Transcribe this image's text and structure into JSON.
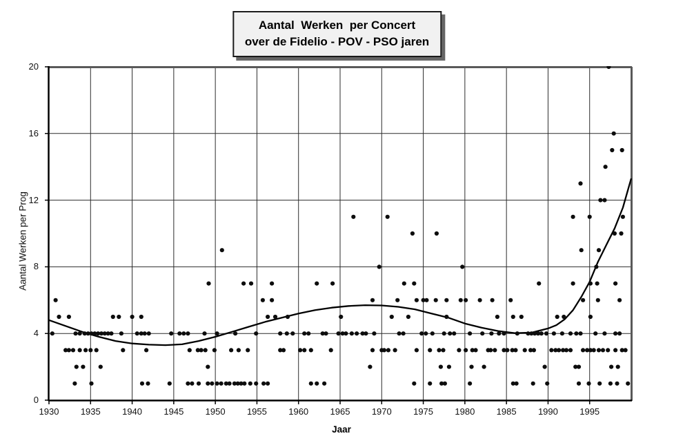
{
  "title": {
    "line1": "Aantal  Werken  per Concert",
    "line2": "over de Fidelio - POV - PSO jaren"
  },
  "chart_data": {
    "type": "scatter",
    "title": "Aantal Werken per Concert over de Fidelio - POV - PSO jaren",
    "xlabel": "Jaar",
    "ylabel": "Aantal Werken per Prog",
    "xlim": [
      1930,
      2000
    ],
    "ylim": [
      0,
      20
    ],
    "x_ticks": [
      1930,
      1935,
      1940,
      1945,
      1950,
      1955,
      1960,
      1965,
      1970,
      1975,
      1980,
      1985,
      1990,
      1995
    ],
    "y_ticks": [
      0,
      4,
      8,
      12,
      16,
      20
    ],
    "grid": true,
    "legend": "none",
    "marker_color": "#0d0d0d",
    "line_color": "#000000",
    "axis_color": "#000000",
    "frame_color": "#595959",
    "points": [
      [
        1930.4,
        4
      ],
      [
        1930.8,
        6
      ],
      [
        1931.2,
        5
      ],
      [
        1932.0,
        3
      ],
      [
        1932.4,
        3
      ],
      [
        1932.4,
        5
      ],
      [
        1932.9,
        3
      ],
      [
        1933.1,
        1
      ],
      [
        1933.2,
        4
      ],
      [
        1933.3,
        2
      ],
      [
        1933.7,
        3
      ],
      [
        1933.7,
        4
      ],
      [
        1934.1,
        2
      ],
      [
        1934.3,
        4
      ],
      [
        1934.4,
        3
      ],
      [
        1934.7,
        4
      ],
      [
        1935.0,
        3
      ],
      [
        1935.1,
        1
      ],
      [
        1935.1,
        4
      ],
      [
        1935.5,
        4
      ],
      [
        1935.7,
        3
      ],
      [
        1935.9,
        4
      ],
      [
        1936.2,
        2
      ],
      [
        1936.3,
        4
      ],
      [
        1936.7,
        4
      ],
      [
        1937.1,
        4
      ],
      [
        1937.5,
        4
      ],
      [
        1937.7,
        5
      ],
      [
        1938.4,
        5
      ],
      [
        1938.7,
        4
      ],
      [
        1938.9,
        3
      ],
      [
        1940.0,
        5
      ],
      [
        1940.6,
        4
      ],
      [
        1941.1,
        5
      ],
      [
        1941.1,
        4
      ],
      [
        1941.2,
        1
      ],
      [
        1941.5,
        4
      ],
      [
        1941.7,
        3
      ],
      [
        1941.9,
        1
      ],
      [
        1942.0,
        4
      ],
      [
        1944.5,
        1
      ],
      [
        1944.7,
        4
      ],
      [
        1945.7,
        4
      ],
      [
        1946.2,
        4
      ],
      [
        1946.7,
        4
      ],
      [
        1946.7,
        1
      ],
      [
        1946.9,
        3
      ],
      [
        1947.2,
        1
      ],
      [
        1947.9,
        3
      ],
      [
        1948.0,
        1
      ],
      [
        1948.3,
        3
      ],
      [
        1948.7,
        4
      ],
      [
        1948.8,
        3
      ],
      [
        1949.1,
        1
      ],
      [
        1949.1,
        2
      ],
      [
        1949.2,
        7
      ],
      [
        1949.6,
        1
      ],
      [
        1949.9,
        3
      ],
      [
        1950.2,
        1
      ],
      [
        1950.2,
        4
      ],
      [
        1950.7,
        1
      ],
      [
        1950.8,
        9
      ],
      [
        1951.3,
        1
      ],
      [
        1951.7,
        1
      ],
      [
        1951.9,
        3
      ],
      [
        1952.3,
        1
      ],
      [
        1952.4,
        4
      ],
      [
        1952.7,
        1
      ],
      [
        1952.8,
        3
      ],
      [
        1953.1,
        1
      ],
      [
        1953.4,
        7
      ],
      [
        1953.5,
        1
      ],
      [
        1953.9,
        3
      ],
      [
        1954.2,
        1
      ],
      [
        1954.3,
        7
      ],
      [
        1954.9,
        1
      ],
      [
        1954.9,
        4
      ],
      [
        1955.7,
        6
      ],
      [
        1955.8,
        1
      ],
      [
        1956.3,
        1
      ],
      [
        1956.3,
        5
      ],
      [
        1956.8,
        6
      ],
      [
        1956.8,
        7
      ],
      [
        1957.2,
        5
      ],
      [
        1957.8,
        4
      ],
      [
        1957.8,
        3
      ],
      [
        1958.2,
        3
      ],
      [
        1958.6,
        4
      ],
      [
        1958.7,
        5
      ],
      [
        1959.3,
        4
      ],
      [
        1960.2,
        3
      ],
      [
        1960.7,
        3
      ],
      [
        1960.7,
        4
      ],
      [
        1961.2,
        4
      ],
      [
        1961.5,
        3
      ],
      [
        1961.5,
        1
      ],
      [
        1962.2,
        1
      ],
      [
        1962.2,
        7
      ],
      [
        1962.9,
        4
      ],
      [
        1963.1,
        1
      ],
      [
        1963.3,
        4
      ],
      [
        1963.9,
        3
      ],
      [
        1964.1,
        7
      ],
      [
        1964.8,
        4
      ],
      [
        1965.1,
        5
      ],
      [
        1965.3,
        4
      ],
      [
        1965.7,
        4
      ],
      [
        1966.4,
        4
      ],
      [
        1966.6,
        11
      ],
      [
        1967.0,
        4
      ],
      [
        1967.7,
        4
      ],
      [
        1968.1,
        4
      ],
      [
        1968.6,
        2
      ],
      [
        1968.9,
        6
      ],
      [
        1968.9,
        3
      ],
      [
        1969.1,
        4
      ],
      [
        1969.7,
        8
      ],
      [
        1970.0,
        3
      ],
      [
        1970.3,
        3
      ],
      [
        1970.7,
        11
      ],
      [
        1970.8,
        3
      ],
      [
        1971.2,
        5
      ],
      [
        1971.6,
        3
      ],
      [
        1971.9,
        6
      ],
      [
        1972.1,
        4
      ],
      [
        1972.6,
        4
      ],
      [
        1972.7,
        7
      ],
      [
        1973.2,
        5
      ],
      [
        1973.7,
        10
      ],
      [
        1973.9,
        7
      ],
      [
        1973.9,
        1
      ],
      [
        1974.2,
        6
      ],
      [
        1974.2,
        3
      ],
      [
        1974.8,
        4
      ],
      [
        1975.0,
        6
      ],
      [
        1975.3,
        4
      ],
      [
        1975.4,
        6
      ],
      [
        1975.8,
        3
      ],
      [
        1975.8,
        1
      ],
      [
        1976.1,
        4
      ],
      [
        1976.5,
        6
      ],
      [
        1976.6,
        10
      ],
      [
        1976.9,
        3
      ],
      [
        1977.1,
        2
      ],
      [
        1977.2,
        1
      ],
      [
        1977.4,
        3
      ],
      [
        1977.5,
        4
      ],
      [
        1977.6,
        1
      ],
      [
        1977.8,
        6
      ],
      [
        1977.8,
        5
      ],
      [
        1978.1,
        2
      ],
      [
        1978.2,
        4
      ],
      [
        1978.7,
        4
      ],
      [
        1979.3,
        3
      ],
      [
        1979.5,
        6
      ],
      [
        1979.7,
        8
      ],
      [
        1980.1,
        6
      ],
      [
        1980.1,
        3
      ],
      [
        1980.6,
        4
      ],
      [
        1980.6,
        1
      ],
      [
        1980.8,
        2
      ],
      [
        1980.9,
        3
      ],
      [
        1981.3,
        3
      ],
      [
        1981.8,
        6
      ],
      [
        1982.1,
        4
      ],
      [
        1982.3,
        2
      ],
      [
        1982.8,
        3
      ],
      [
        1983.1,
        3
      ],
      [
        1983.2,
        4
      ],
      [
        1983.3,
        6
      ],
      [
        1983.6,
        3
      ],
      [
        1983.9,
        5
      ],
      [
        1984.1,
        4
      ],
      [
        1984.7,
        4
      ],
      [
        1984.7,
        3
      ],
      [
        1985.1,
        3
      ],
      [
        1985.5,
        6
      ],
      [
        1985.7,
        3
      ],
      [
        1985.8,
        5
      ],
      [
        1985.8,
        1
      ],
      [
        1986.1,
        3
      ],
      [
        1986.2,
        1
      ],
      [
        1986.3,
        4
      ],
      [
        1986.8,
        5
      ],
      [
        1987.2,
        3
      ],
      [
        1987.6,
        4
      ],
      [
        1987.9,
        3
      ],
      [
        1988.0,
        4
      ],
      [
        1988.2,
        1
      ],
      [
        1988.3,
        3
      ],
      [
        1988.4,
        4
      ],
      [
        1988.8,
        4
      ],
      [
        1988.9,
        7
      ],
      [
        1989.2,
        4
      ],
      [
        1989.6,
        2
      ],
      [
        1989.8,
        4
      ],
      [
        1989.9,
        1
      ],
      [
        1990.4,
        3
      ],
      [
        1990.7,
        4
      ],
      [
        1990.9,
        3
      ],
      [
        1991.1,
        5
      ],
      [
        1991.3,
        3
      ],
      [
        1991.7,
        4
      ],
      [
        1991.8,
        3
      ],
      [
        1991.9,
        5
      ],
      [
        1992.2,
        3
      ],
      [
        1992.7,
        3
      ],
      [
        1992.7,
        4
      ],
      [
        1993.0,
        11
      ],
      [
        1993.0,
        7
      ],
      [
        1993.3,
        2
      ],
      [
        1993.4,
        4
      ],
      [
        1993.7,
        2
      ],
      [
        1993.7,
        1
      ],
      [
        1993.9,
        13
      ],
      [
        1993.9,
        4
      ],
      [
        1994.0,
        9
      ],
      [
        1994.2,
        6
      ],
      [
        1994.2,
        3
      ],
      [
        1994.7,
        3
      ],
      [
        1994.9,
        1
      ],
      [
        1995.0,
        11
      ],
      [
        1995.1,
        5
      ],
      [
        1995.1,
        3
      ],
      [
        1995.1,
        7
      ],
      [
        1995.5,
        3
      ],
      [
        1995.7,
        4
      ],
      [
        1995.8,
        8
      ],
      [
        1995.9,
        7
      ],
      [
        1996.0,
        6
      ],
      [
        1996.1,
        9
      ],
      [
        1996.1,
        3
      ],
      [
        1996.2,
        1
      ],
      [
        1996.3,
        12
      ],
      [
        1996.6,
        3
      ],
      [
        1996.8,
        12
      ],
      [
        1996.8,
        4
      ],
      [
        1996.9,
        14
      ],
      [
        1997.2,
        3
      ],
      [
        1997.3,
        20
      ],
      [
        1997.5,
        1
      ],
      [
        1997.6,
        2
      ],
      [
        1997.7,
        15
      ],
      [
        1997.9,
        16
      ],
      [
        1998.0,
        10
      ],
      [
        1998.1,
        4
      ],
      [
        1998.1,
        3
      ],
      [
        1998.1,
        7
      ],
      [
        1998.3,
        1
      ],
      [
        1998.4,
        2
      ],
      [
        1998.6,
        4
      ],
      [
        1998.6,
        6
      ],
      [
        1998.8,
        10
      ],
      [
        1998.9,
        15
      ],
      [
        1998.9,
        3
      ],
      [
        1999.0,
        11
      ],
      [
        1999.3,
        3
      ],
      [
        1999.6,
        1
      ]
    ],
    "trend_line": [
      [
        1930,
        4.8
      ],
      [
        1932,
        4.45
      ],
      [
        1934,
        4.1
      ],
      [
        1936,
        3.8
      ],
      [
        1938,
        3.55
      ],
      [
        1940,
        3.4
      ],
      [
        1942,
        3.33
      ],
      [
        1944,
        3.3
      ],
      [
        1946,
        3.35
      ],
      [
        1948,
        3.55
      ],
      [
        1950,
        3.8
      ],
      [
        1952,
        4.1
      ],
      [
        1954,
        4.4
      ],
      [
        1956,
        4.7
      ],
      [
        1958,
        4.95
      ],
      [
        1960,
        5.2
      ],
      [
        1962,
        5.4
      ],
      [
        1964,
        5.55
      ],
      [
        1966,
        5.65
      ],
      [
        1968,
        5.7
      ],
      [
        1970,
        5.68
      ],
      [
        1972,
        5.6
      ],
      [
        1974,
        5.45
      ],
      [
        1976,
        5.2
      ],
      [
        1978,
        4.95
      ],
      [
        1980,
        4.6
      ],
      [
        1982,
        4.35
      ],
      [
        1984,
        4.15
      ],
      [
        1986,
        4.02
      ],
      [
        1988,
        4.05
      ],
      [
        1990,
        4.3
      ],
      [
        1991,
        4.5
      ],
      [
        1992,
        4.85
      ],
      [
        1993,
        5.4
      ],
      [
        1994,
        6.2
      ],
      [
        1995,
        7.1
      ],
      [
        1996,
        8.3
      ],
      [
        1997,
        9.3
      ],
      [
        1998,
        10.3
      ],
      [
        1999,
        11.55
      ],
      [
        2000,
        13.3
      ]
    ]
  }
}
